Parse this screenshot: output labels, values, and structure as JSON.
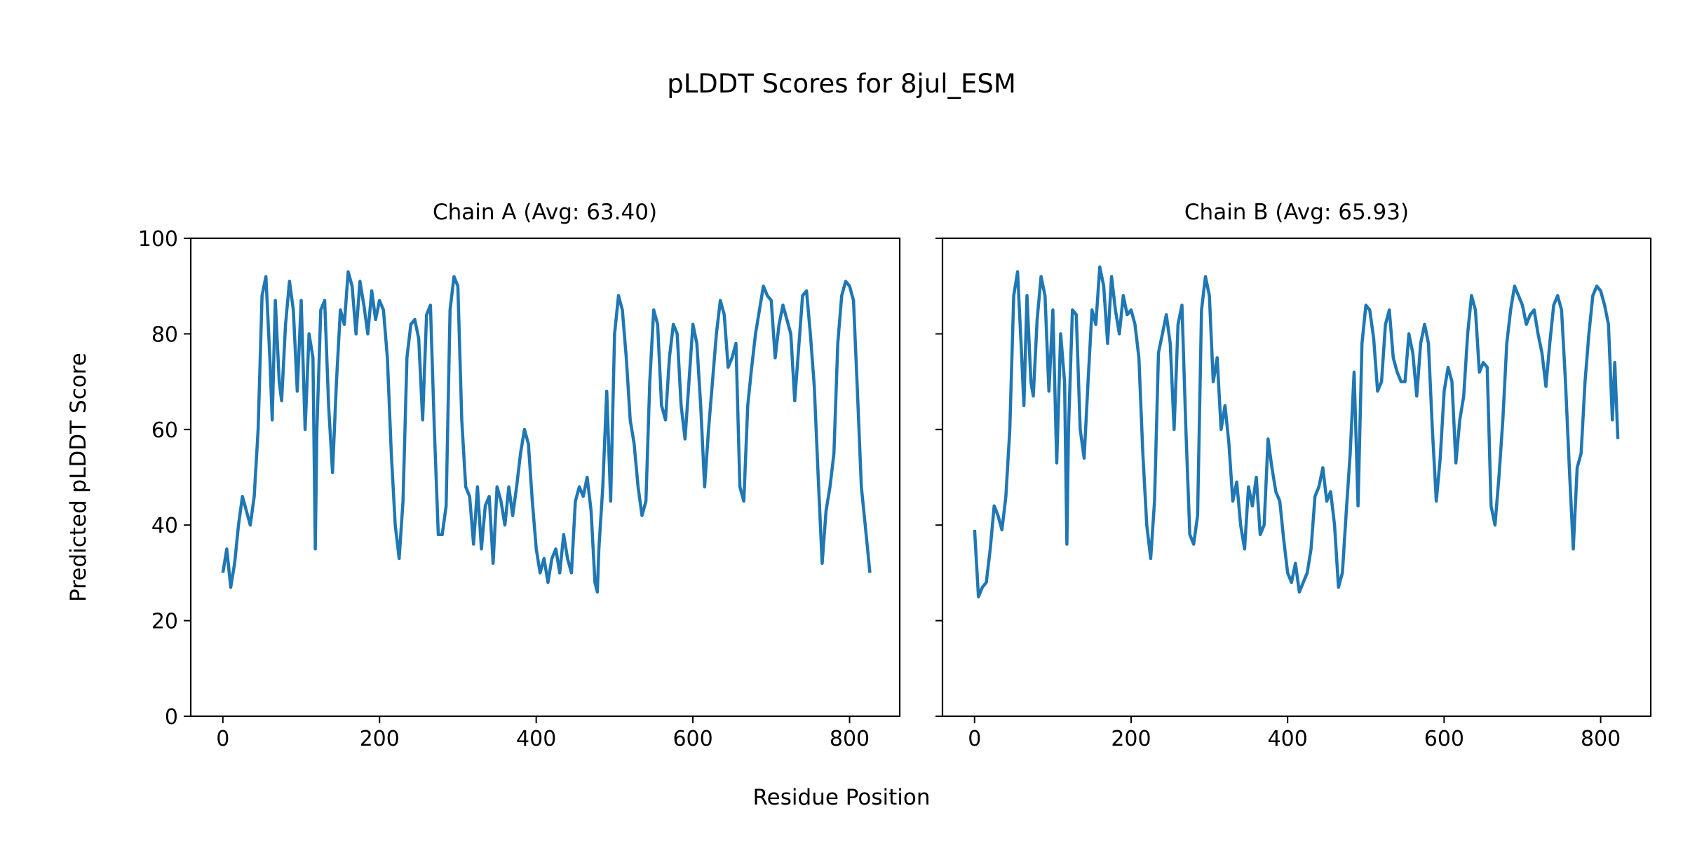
{
  "chart_data": {
    "type": "line",
    "title": "pLDDT Scores for 8jul_ESM",
    "xlabel": "Residue Position",
    "ylabel": "Predicted pLDDT Score",
    "ylim": [
      0,
      100
    ],
    "xlim": [
      -41,
      864
    ],
    "xticks": [
      "0",
      "200",
      "400",
      "600",
      "800"
    ],
    "yticks": [
      "0",
      "20",
      "40",
      "60",
      "80",
      "100"
    ],
    "grid": false,
    "line_color": "#1f77b4",
    "panels": [
      {
        "title": "Chain A (Avg: 63.40)",
        "x": [
          0,
          5,
          10,
          15,
          20,
          25,
          30,
          35,
          40,
          45,
          50,
          55,
          60,
          63,
          67,
          72,
          75,
          80,
          85,
          90,
          95,
          100,
          105,
          110,
          115,
          118,
          120,
          125,
          130,
          135,
          140,
          145,
          150,
          155,
          160,
          165,
          170,
          175,
          180,
          185,
          190,
          195,
          200,
          205,
          210,
          215,
          220,
          225,
          230,
          235,
          240,
          245,
          250,
          255,
          260,
          265,
          270,
          275,
          280,
          285,
          290,
          295,
          300,
          305,
          310,
          315,
          320,
          325,
          330,
          335,
          340,
          345,
          350,
          355,
          360,
          365,
          370,
          375,
          380,
          385,
          390,
          395,
          400,
          405,
          410,
          415,
          420,
          425,
          430,
          435,
          440,
          445,
          450,
          455,
          460,
          465,
          470,
          475,
          478,
          480,
          485,
          490,
          495,
          500,
          505,
          510,
          515,
          520,
          525,
          530,
          535,
          540,
          545,
          550,
          555,
          560,
          565,
          570,
          575,
          580,
          585,
          590,
          595,
          600,
          605,
          610,
          615,
          620,
          625,
          630,
          635,
          640,
          645,
          650,
          655,
          660,
          665,
          670,
          675,
          680,
          685,
          690,
          695,
          700,
          705,
          710,
          715,
          720,
          725,
          730,
          735,
          740,
          745,
          750,
          755,
          760,
          765,
          770,
          775,
          780,
          785,
          790,
          795,
          800,
          805,
          810,
          815,
          820,
          823,
          826
        ],
        "y": [
          30,
          35,
          27,
          32,
          40,
          46,
          43,
          40,
          46,
          60,
          88,
          92,
          75,
          62,
          87,
          70,
          66,
          82,
          91,
          85,
          68,
          87,
          60,
          80,
          75,
          35,
          60,
          85,
          87,
          65,
          51,
          70,
          85,
          82,
          93,
          90,
          80,
          91,
          86,
          80,
          89,
          83,
          87,
          85,
          75,
          55,
          40,
          33,
          45,
          75,
          82,
          83,
          79,
          62,
          84,
          86,
          60,
          38,
          38,
          44,
          85,
          92,
          90,
          62,
          48,
          46,
          36,
          48,
          35,
          44,
          46,
          32,
          48,
          45,
          40,
          48,
          42,
          48,
          55,
          60,
          57,
          45,
          35,
          30,
          33,
          28,
          33,
          35,
          30,
          38,
          33,
          30,
          45,
          48,
          46,
          50,
          43,
          28,
          26,
          35,
          48,
          68,
          45,
          80,
          88,
          85,
          75,
          62,
          57,
          48,
          42,
          45,
          70,
          85,
          82,
          65,
          62,
          75,
          82,
          80,
          65,
          58,
          70,
          82,
          78,
          65,
          48,
          60,
          70,
          80,
          87,
          84,
          73,
          75,
          78,
          48,
          45,
          65,
          73,
          80,
          85,
          90,
          88,
          87,
          75,
          82,
          86,
          83,
          80,
          66,
          77,
          88,
          89,
          80,
          69,
          50,
          32,
          43,
          48,
          55,
          78,
          88,
          91,
          90,
          87,
          68,
          48,
          40,
          35,
          30
        ]
      },
      {
        "title": "Chain B (Avg: 65.93)",
        "x": [
          0,
          5,
          10,
          15,
          20,
          25,
          30,
          35,
          40,
          45,
          50,
          55,
          60,
          63,
          67,
          72,
          75,
          80,
          85,
          90,
          95,
          100,
          105,
          110,
          115,
          118,
          120,
          125,
          130,
          135,
          140,
          145,
          150,
          155,
          160,
          165,
          170,
          175,
          180,
          185,
          190,
          195,
          200,
          205,
          210,
          215,
          220,
          225,
          230,
          235,
          240,
          245,
          250,
          255,
          260,
          265,
          270,
          275,
          280,
          285,
          290,
          295,
          300,
          305,
          310,
          315,
          320,
          325,
          330,
          335,
          340,
          345,
          350,
          355,
          360,
          365,
          370,
          375,
          380,
          385,
          390,
          395,
          400,
          405,
          410,
          415,
          420,
          425,
          430,
          435,
          440,
          445,
          450,
          455,
          460,
          465,
          470,
          475,
          480,
          485,
          490,
          495,
          500,
          505,
          510,
          515,
          520,
          525,
          530,
          535,
          540,
          545,
          550,
          555,
          560,
          565,
          570,
          575,
          580,
          585,
          590,
          595,
          600,
          605,
          610,
          615,
          620,
          625,
          630,
          635,
          640,
          645,
          650,
          655,
          660,
          665,
          670,
          675,
          680,
          685,
          690,
          695,
          700,
          705,
          710,
          715,
          720,
          725,
          730,
          735,
          740,
          745,
          750,
          755,
          760,
          765,
          770,
          775,
          780,
          785,
          790,
          795,
          800,
          805,
          810,
          815,
          818,
          822
        ],
        "y": [
          39,
          25,
          27,
          28,
          35,
          44,
          42,
          39,
          46,
          60,
          88,
          93,
          76,
          65,
          88,
          70,
          67,
          83,
          92,
          88,
          68,
          85,
          53,
          80,
          70,
          36,
          60,
          85,
          84,
          60,
          54,
          70,
          85,
          82,
          94,
          90,
          78,
          92,
          85,
          80,
          88,
          84,
          85,
          82,
          75,
          55,
          40,
          33,
          45,
          76,
          80,
          84,
          78,
          60,
          82,
          86,
          60,
          38,
          36,
          42,
          85,
          92,
          88,
          70,
          75,
          60,
          65,
          57,
          45,
          49,
          40,
          35,
          48,
          44,
          50,
          38,
          40,
          58,
          52,
          47,
          45,
          37,
          30,
          28,
          32,
          26,
          28,
          30,
          35,
          46,
          48,
          52,
          45,
          47,
          40,
          27,
          30,
          43,
          55,
          72,
          44,
          78,
          86,
          85,
          79,
          68,
          70,
          82,
          85,
          75,
          72,
          70,
          70,
          80,
          76,
          67,
          78,
          82,
          78,
          60,
          45,
          54,
          68,
          73,
          70,
          53,
          62,
          67,
          80,
          88,
          85,
          72,
          74,
          73,
          44,
          40,
          50,
          62,
          78,
          85,
          90,
          88,
          86,
          82,
          84,
          85,
          80,
          76,
          69,
          78,
          86,
          88,
          85,
          70,
          52,
          35,
          52,
          55,
          70,
          80,
          88,
          90,
          89,
          86,
          82,
          62,
          74,
          58
        ]
      }
    ]
  }
}
